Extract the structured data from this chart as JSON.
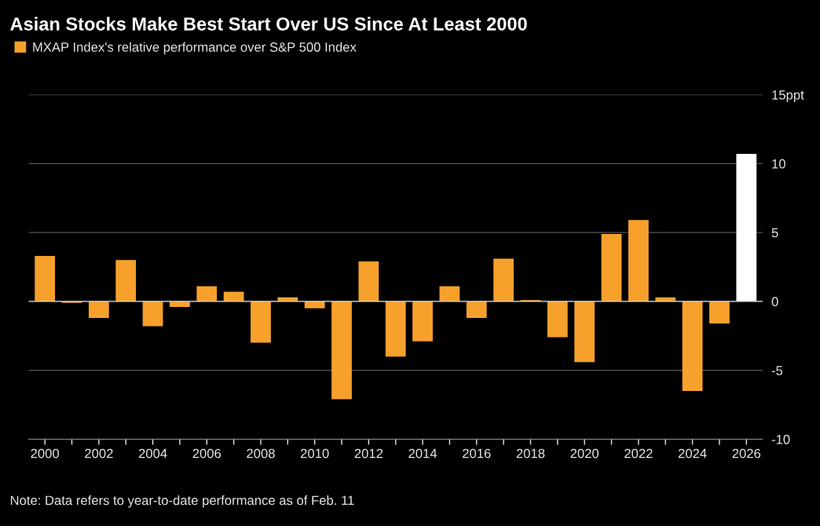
{
  "chart_data": {
    "type": "bar",
    "title": "Asian Stocks Make Best Start Over US Since At Least 2000",
    "categories": [
      "2000",
      null,
      "2002",
      null,
      "2004",
      null,
      "2006",
      null,
      "2008",
      null,
      "2010",
      null,
      "2012",
      null,
      "2014",
      null,
      "2016",
      null,
      "2018",
      null,
      "2020",
      null,
      "2022",
      null,
      "2024",
      null,
      "2026"
    ],
    "series": [
      {
        "name": "MXAP Index's relative performance over S&P 500 Index",
        "color": "#f7a12c",
        "colors": [
          "#f7a12c",
          "#f7a12c",
          "#f7a12c",
          "#f7a12c",
          "#f7a12c",
          "#f7a12c",
          "#f7a12c",
          "#f7a12c",
          "#f7a12c",
          "#f7a12c",
          "#f7a12c",
          "#f7a12c",
          "#f7a12c",
          "#f7a12c",
          "#f7a12c",
          "#f7a12c",
          "#f7a12c",
          "#f7a12c",
          "#f7a12c",
          "#f7a12c",
          "#f7a12c",
          "#f7a12c",
          "#f7a12c",
          "#f7a12c",
          "#f7a12c",
          "#f7a12c",
          "#ffffff"
        ],
        "values": [
          3.3,
          -0.1,
          -1.2,
          3.0,
          -1.8,
          -0.4,
          1.1,
          0.7,
          -3.0,
          0.3,
          -0.5,
          -7.1,
          2.9,
          -4.0,
          -2.9,
          1.1,
          -1.2,
          3.1,
          0.1,
          -2.6,
          -4.4,
          4.9,
          5.9,
          0.3,
          -6.5,
          -1.6,
          10.7
        ]
      }
    ],
    "ylim": [
      -10,
      15
    ],
    "yticks": [
      -10,
      -5,
      0,
      5,
      10,
      {
        "value": 15,
        "label": "15ppt"
      }
    ],
    "grid": "y",
    "legend": "top left",
    "annotations": [
      "Note: Data refers to year-to-date performance as of Feb. 11"
    ]
  }
}
